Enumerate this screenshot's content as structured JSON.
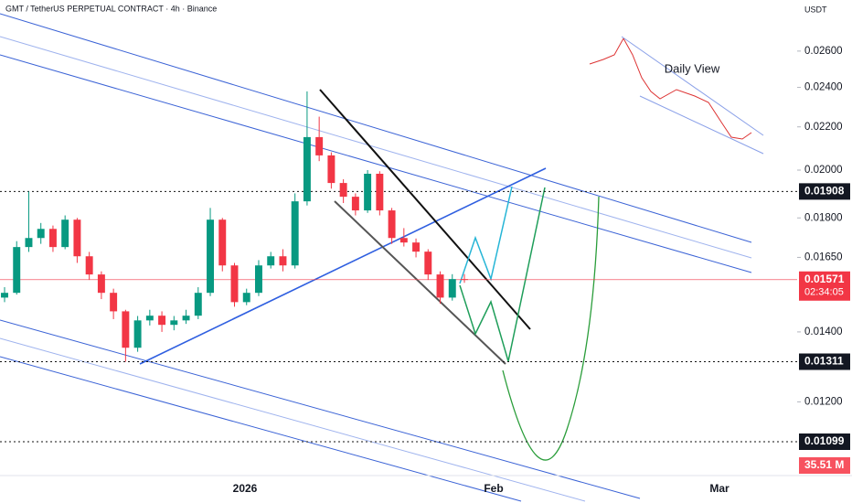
{
  "chart_data": {
    "type": "candlestick",
    "title": "GMT / TetherUS PERPETUAL CONTRACT · 4h · Binance",
    "currency": "USDT",
    "inset_label": "Daily View",
    "log_scale": true,
    "ylim": [
      0.0102,
      0.0291
    ],
    "yticks": [
      {
        "value": 0.026,
        "label": "0.02600"
      },
      {
        "value": 0.024,
        "label": "0.02400"
      },
      {
        "value": 0.022,
        "label": "0.02200"
      },
      {
        "value": 0.02,
        "label": "0.02000"
      },
      {
        "value": 0.018,
        "label": "0.01800"
      },
      {
        "value": 0.0165,
        "label": "0.01650"
      },
      {
        "value": 0.014,
        "label": "0.01400"
      },
      {
        "value": 0.012,
        "label": "0.01200"
      }
    ],
    "x_labels": [
      "2026",
      "Feb",
      "Mar"
    ],
    "levels": [
      0.01908,
      0.01311,
      0.01099
    ],
    "last_price": 0.01571,
    "countdown": "02:34:05",
    "volume_label": "35.51 M",
    "up_color": "#089981",
    "down_color": "#f23645",
    "open": [
      0.0151,
      0.01526,
      0.01688,
      0.01722,
      0.01757,
      0.01688,
      0.01793,
      0.01654,
      0.01589,
      0.01526,
      0.01465,
      0.01352,
      0.01436,
      0.01451,
      0.01422,
      0.01436,
      0.01451,
      0.01526,
      0.01793,
      0.01621,
      0.01495,
      0.01526,
      0.01621,
      0.01654,
      0.01621,
      0.01867,
      0.02151,
      0.02066,
      0.01944,
      0.01886,
      0.0183,
      0.01984,
      0.0183,
      0.01722,
      0.01705,
      0.01671,
      0.01589,
      0.0151,
      0.01573
    ],
    "high": [
      0.01545,
      0.0171,
      0.01908,
      0.0178,
      0.0177,
      0.0181,
      0.018,
      0.0167,
      0.016,
      0.0154,
      0.0147,
      0.0145,
      0.0147,
      0.01465,
      0.0145,
      0.0147,
      0.01545,
      0.0184,
      0.018,
      0.0163,
      0.0154,
      0.0164,
      0.0167,
      0.0168,
      0.019,
      0.02379,
      0.0225,
      0.0208,
      0.0196,
      0.019,
      0.02,
      0.01995,
      0.0184,
      0.0176,
      0.0172,
      0.0168,
      0.016,
      0.0159,
      0.0159
    ],
    "low": [
      0.01495,
      0.0152,
      0.0167,
      0.017,
      0.0167,
      0.0168,
      0.0163,
      0.0157,
      0.01505,
      0.0144,
      0.01311,
      0.0134,
      0.0142,
      0.014,
      0.01405,
      0.01425,
      0.0144,
      0.01515,
      0.016,
      0.0148,
      0.01485,
      0.01515,
      0.0161,
      0.016,
      0.0161,
      0.0185,
      0.0204,
      0.0192,
      0.0186,
      0.0181,
      0.0182,
      0.0181,
      0.017,
      0.0169,
      0.0165,
      0.0157,
      0.0149,
      0.015,
      0.0156
    ],
    "close": [
      0.01526,
      0.01688,
      0.01722,
      0.01757,
      0.01688,
      0.01793,
      0.01654,
      0.01589,
      0.01526,
      0.01465,
      0.01352,
      0.01436,
      0.01451,
      0.01422,
      0.01436,
      0.01451,
      0.01526,
      0.01793,
      0.01621,
      0.01495,
      0.01526,
      0.01621,
      0.01654,
      0.01621,
      0.01867,
      0.02151,
      0.02066,
      0.01944,
      0.01886,
      0.0183,
      0.01984,
      0.0183,
      0.01722,
      0.01705,
      0.01671,
      0.01589,
      0.0151,
      0.01573,
      0.01571
    ]
  }
}
